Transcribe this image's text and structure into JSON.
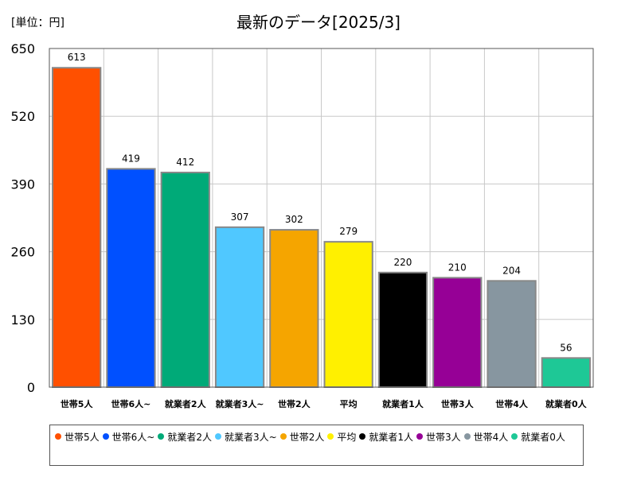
{
  "unit_label": "[単位：円]",
  "chart_data": {
    "type": "bar",
    "title": "最新のデータ[2025/3]",
    "categories": [
      "世帯5人",
      "世帯6人~",
      "就業者2人",
      "就業者3人~",
      "世帯2人",
      "平均",
      "就業者1人",
      "世帯3人",
      "世帯4人",
      "就業者0人"
    ],
    "values": [
      613,
      419,
      412,
      307,
      302,
      279,
      220,
      210,
      204,
      56
    ],
    "colors": [
      "#ff5000",
      "#0050ff",
      "#00aa78",
      "#50c8ff",
      "#f5a500",
      "#fff000",
      "#000000",
      "#960096",
      "#8796a0",
      "#1ec896"
    ],
    "ylim": [
      0,
      650
    ],
    "yticks": [
      0,
      130,
      260,
      390,
      520,
      650
    ],
    "grid": true,
    "legend_position": "bottom"
  }
}
